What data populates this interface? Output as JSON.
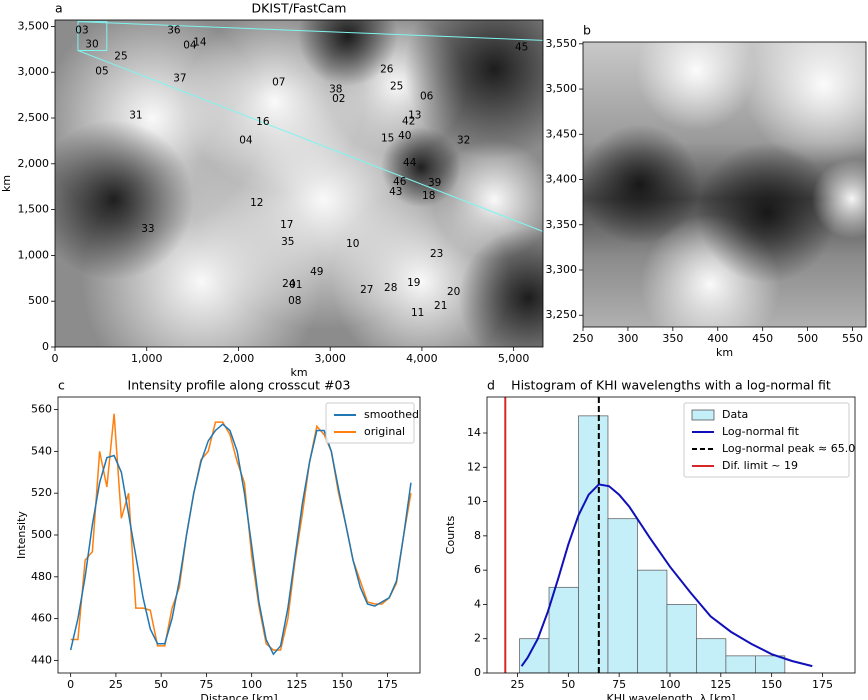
{
  "chart_data": [
    {
      "type": "image",
      "panel": "a",
      "title": "DKIST/FastCam",
      "xlabel": "km",
      "ylabel": "km",
      "xlim": [
        0,
        5320
      ],
      "ylim": [
        0,
        3570
      ],
      "xticks": [
        0,
        {
          "value": 1000,
          "label": "1,000"
        },
        {
          "value": 2000,
          "label": "2,000"
        },
        {
          "value": 3000,
          "label": "3,000"
        },
        {
          "value": 4000,
          "label": "4,000"
        },
        {
          "value": 5000,
          "label": "5,000"
        }
      ],
      "yticks": [
        0,
        500,
        {
          "value": 1000,
          "label": "1,000"
        },
        {
          "value": 1500,
          "label": "1,500"
        },
        {
          "value": 2000,
          "label": "2,000"
        },
        {
          "value": 2500,
          "label": "2,500"
        },
        {
          "value": 3000,
          "label": "3,000"
        },
        {
          "value": 3500,
          "label": "3,500"
        }
      ],
      "label_color": "#7ff5f0",
      "crosscuts": [
        {
          "label": "03",
          "x": 294,
          "y": 3457
        },
        {
          "label": "36",
          "x": 1296,
          "y": 3457
        },
        {
          "label": "04",
          "x": 1471,
          "y": 3293
        },
        {
          "label": "14",
          "x": 1580,
          "y": 3326
        },
        {
          "label": "45",
          "x": 5087,
          "y": 3272
        },
        {
          "label": "30",
          "x": 403,
          "y": 3304
        },
        {
          "label": "25",
          "x": 719,
          "y": 3173
        },
        {
          "label": "05",
          "x": 512,
          "y": 3010
        },
        {
          "label": "37",
          "x": 1362,
          "y": 2933
        },
        {
          "label": "07",
          "x": 2440,
          "y": 2890
        },
        {
          "label": "26",
          "x": 3617,
          "y": 3032
        },
        {
          "label": "38",
          "x": 3061,
          "y": 2813
        },
        {
          "label": "02",
          "x": 3094,
          "y": 2705
        },
        {
          "label": "25",
          "x": 3725,
          "y": 2846
        },
        {
          "label": "06",
          "x": 4052,
          "y": 2737
        },
        {
          "label": "31",
          "x": 882,
          "y": 2530
        },
        {
          "label": "16",
          "x": 2266,
          "y": 2454
        },
        {
          "label": "13",
          "x": 3922,
          "y": 2530
        },
        {
          "label": "42",
          "x": 3856,
          "y": 2464
        },
        {
          "label": "40",
          "x": 3813,
          "y": 2301
        },
        {
          "label": "15",
          "x": 3627,
          "y": 2279
        },
        {
          "label": "04",
          "x": 2081,
          "y": 2257
        },
        {
          "label": "32",
          "x": 4455,
          "y": 2257
        },
        {
          "label": "44",
          "x": 3867,
          "y": 2007
        },
        {
          "label": "46",
          "x": 3758,
          "y": 1799
        },
        {
          "label": "39",
          "x": 4139,
          "y": 1788
        },
        {
          "label": "43",
          "x": 3715,
          "y": 1690
        },
        {
          "label": "18",
          "x": 4074,
          "y": 1647
        },
        {
          "label": "12",
          "x": 2200,
          "y": 1570
        },
        {
          "label": "17",
          "x": 2527,
          "y": 1330
        },
        {
          "label": "35",
          "x": 2538,
          "y": 1145
        },
        {
          "label": "33",
          "x": 1013,
          "y": 1287
        },
        {
          "label": "10",
          "x": 3246,
          "y": 1123
        },
        {
          "label": "49",
          "x": 2854,
          "y": 818
        },
        {
          "label": "23",
          "x": 4161,
          "y": 1014
        },
        {
          "label": "24",
          "x": 2549,
          "y": 687
        },
        {
          "label": "27",
          "x": 3399,
          "y": 622
        },
        {
          "label": "28",
          "x": 3660,
          "y": 643
        },
        {
          "label": "01",
          "x": 2625,
          "y": 676
        },
        {
          "label": "19",
          "x": 3911,
          "y": 698
        },
        {
          "label": "20",
          "x": 4346,
          "y": 600
        },
        {
          "label": "21",
          "x": 4205,
          "y": 447
        },
        {
          "label": "08",
          "x": 2614,
          "y": 502
        },
        {
          "label": "11",
          "x": 3954,
          "y": 371
        }
      ]
    },
    {
      "type": "image",
      "panel": "b",
      "xlabel": "km",
      "xlim": [
        250,
        565
      ],
      "ylim": [
        3237,
        3552
      ],
      "xticks": [
        250,
        300,
        350,
        400,
        450,
        500,
        550
      ],
      "yticks": [
        {
          "value": 3250,
          "label": "3,250"
        },
        {
          "value": 3300,
          "label": "3,300"
        },
        {
          "value": 3350,
          "label": "3,350"
        },
        {
          "value": 3400,
          "label": "3,400"
        },
        {
          "value": 3450,
          "label": "3,450"
        },
        {
          "value": 3500,
          "label": "3,500"
        },
        {
          "value": 3550,
          "label": "3,550"
        }
      ],
      "y_axis_side": "left"
    },
    {
      "type": "line",
      "panel": "c",
      "title": "Intensity profile along crosscut #03",
      "xlabel": "Distance [km]",
      "ylabel": "Intensity",
      "xlim": [
        -7,
        193
      ],
      "ylim": [
        434,
        566
      ],
      "xticks": [
        0,
        25,
        50,
        75,
        100,
        125,
        150,
        175
      ],
      "yticks": [
        440,
        460,
        480,
        500,
        520,
        540,
        560
      ],
      "legend": "upper right",
      "x": [
        0,
        4,
        8,
        12,
        16,
        20,
        24,
        28,
        32,
        36,
        40,
        44,
        48,
        52,
        56,
        60,
        64,
        68,
        72,
        76,
        80,
        84,
        88,
        92,
        96,
        100,
        104,
        108,
        112,
        116,
        120,
        124,
        128,
        132,
        136,
        140,
        144,
        148,
        152,
        156,
        160,
        164,
        168,
        172,
        176,
        180,
        184,
        188
      ],
      "series": [
        {
          "name": "smoothed",
          "color": "#1f77b4",
          "values": [
            445,
            460,
            480,
            505,
            525,
            537,
            538,
            530,
            510,
            490,
            470,
            455,
            448,
            448,
            460,
            478,
            500,
            520,
            535,
            545,
            550,
            553,
            550,
            540,
            520,
            495,
            468,
            450,
            443,
            447,
            465,
            490,
            515,
            535,
            550,
            550,
            540,
            522,
            505,
            488,
            475,
            467,
            466,
            468,
            470,
            478,
            500,
            525
          ]
        },
        {
          "name": "original",
          "color": "#ff7f0e",
          "values": [
            450,
            450,
            488,
            492,
            540,
            523,
            558,
            508,
            520,
            465,
            465,
            464,
            447,
            447,
            465,
            475,
            500,
            520,
            536,
            540,
            554,
            554,
            548,
            535,
            525,
            490,
            466,
            448,
            445,
            445,
            460,
            488,
            510,
            535,
            552,
            548,
            540,
            520,
            505,
            488,
            478,
            468,
            467,
            467,
            470,
            477,
            500,
            520
          ]
        }
      ]
    },
    {
      "type": "histogram",
      "panel": "d",
      "title": "Histogram of KHI wavelengths with a log-normal fit",
      "xlabel": "KHI wavelength, λ [km]",
      "ylabel": "Counts",
      "xlim": [
        10,
        191
      ],
      "ylim": [
        0,
        16.1
      ],
      "xticks": [
        25,
        50,
        75,
        100,
        125,
        150,
        175
      ],
      "yticks": [
        0,
        2,
        4,
        6,
        8,
        10,
        12,
        14
      ],
      "legend": "upper right",
      "name": "Data",
      "color": "#c4eef8",
      "bins": [
        26,
        40.5,
        55,
        69.5,
        84,
        98.5,
        113,
        127.5,
        142,
        156.5
      ],
      "counts": [
        2,
        5,
        15,
        9,
        6,
        4,
        2,
        1,
        1
      ],
      "fit": {
        "name": "Log-normal fit",
        "color": "#1010b8",
        "x": [
          27,
          30,
          35,
          40,
          45,
          50,
          55,
          60,
          65,
          70,
          75,
          80,
          90,
          100,
          110,
          120,
          130,
          140,
          150,
          160,
          170
        ],
        "y": [
          0.4,
          0.9,
          2.0,
          3.6,
          5.5,
          7.5,
          9.2,
          10.4,
          11.0,
          10.9,
          10.4,
          9.7,
          7.9,
          6.2,
          4.7,
          3.3,
          2.4,
          1.7,
          1.1,
          0.7,
          0.4
        ]
      },
      "vlines": [
        {
          "name": "Log-normal peak ≈ 65.0",
          "value": 65,
          "color": "#000000",
          "dashed": true
        },
        {
          "name": "Dif. limit ~ 19",
          "value": 19,
          "color": "#d62728",
          "dashed": false
        }
      ]
    }
  ]
}
